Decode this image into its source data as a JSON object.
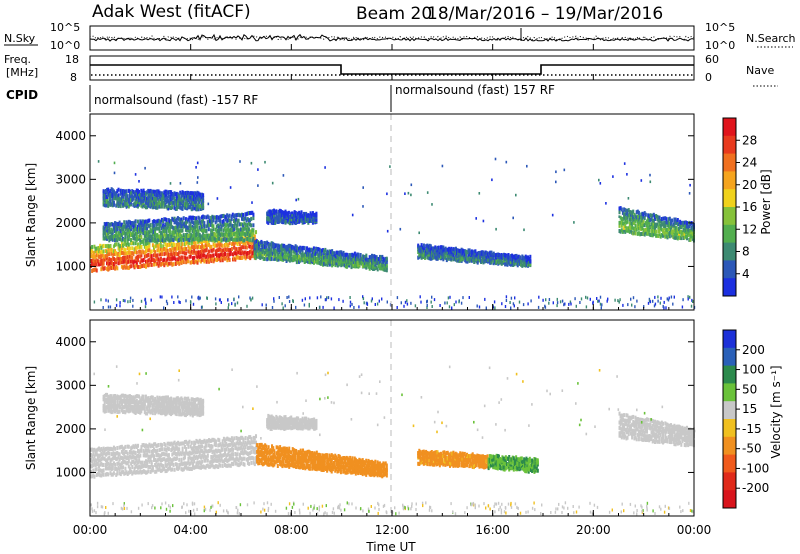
{
  "header": {
    "site": "Adak West (fitACF)",
    "beam": "Beam 20",
    "dates": "18/Mar/2016 – 19/Mar/2016"
  },
  "small_panels": {
    "nsky_label": "N.Sky",
    "nsky_ticks": [
      "10^5",
      "10^0"
    ],
    "nsearch_label": "N.Search",
    "nsearch_ticks": [
      "10^5",
      "10^0"
    ],
    "freq_label_line1": "Freq.",
    "freq_label_line2": "[MHz]",
    "freq_ticks": [
      "18",
      "8"
    ],
    "nave_label": "Nave",
    "nave_ticks": [
      "60",
      "0"
    ],
    "cpid_label": "CPID",
    "cpid_segments": [
      {
        "text": "normalsound (fast) -157 RF",
        "start_h": 0,
        "end_h": 12
      },
      {
        "text": "normalsound (fast) 157 RF",
        "start_h": 12,
        "end_h": 24
      }
    ]
  },
  "chart_data": [
    {
      "type": "heatmap",
      "parameter": "Power",
      "ylabel": "Slant Range [km]",
      "ylim": [
        0,
        4500
      ],
      "yticks": [
        "1000",
        "2000",
        "3000",
        "4000"
      ],
      "xlim_hours": [
        0,
        24
      ],
      "colorbar_label": "Power [dB]",
      "colorbar_ticks": [
        "4",
        "8",
        "12",
        "16",
        "20",
        "24",
        "28"
      ],
      "colorbar_colors": [
        "#1c30e0",
        "#2c58b8",
        "#3d8a72",
        "#52ae4e",
        "#86c23a",
        "#f0d21c",
        "#f5a41e",
        "#f07020",
        "#e83a1e",
        "#e0141c"
      ],
      "features": [
        {
          "t0": 0,
          "t1": 6.6,
          "r0": 900,
          "r1": 1200,
          "r2": 1500,
          "r3": 1900,
          "value": 24
        },
        {
          "t0": 0.5,
          "t1": 6.5,
          "r0": 1600,
          "r1": 1600,
          "r2": 2000,
          "r3": 2300,
          "value": 10
        },
        {
          "t0": 0.5,
          "t1": 4.5,
          "r0": 2400,
          "r1": 2300,
          "r2": 2800,
          "r3": 2700,
          "value": 8
        },
        {
          "t0": 6.5,
          "t1": 11.8,
          "r0": 1200,
          "r1": 900,
          "r2": 1600,
          "r3": 1200,
          "value": 10
        },
        {
          "t0": 7.0,
          "t1": 9.0,
          "r0": 2000,
          "r1": 2000,
          "r2": 2300,
          "r3": 2200,
          "value": 6
        },
        {
          "t0": 13.0,
          "t1": 17.5,
          "r0": 1200,
          "r1": 1000,
          "r2": 1500,
          "r3": 1200,
          "value": 8
        },
        {
          "t0": 21.0,
          "t1": 24.0,
          "r0": 1800,
          "r1": 1600,
          "r2": 2400,
          "r3": 2000,
          "value": 12
        }
      ]
    },
    {
      "type": "heatmap",
      "parameter": "Velocity",
      "ylabel": "Slant Range [km]",
      "ylim": [
        0,
        4500
      ],
      "yticks": [
        "1000",
        "2000",
        "3000",
        "4000"
      ],
      "xlim_hours": [
        0,
        24
      ],
      "xticks": [
        "00:00",
        "04:00",
        "08:00",
        "12:00",
        "16:00",
        "20:00",
        "00:00"
      ],
      "xlabel": "Time UT",
      "colorbar_label": "Velocity [m s⁻¹]",
      "colorbar_ticks": [
        "200",
        "100",
        "50",
        "15",
        "-15",
        "-50",
        "-100",
        "-200"
      ],
      "colorbar_colors": [
        "#1c30d8",
        "#2a60b8",
        "#2c8a4c",
        "#6ac23a",
        "#c8c8c8",
        "#f0c020",
        "#f09020",
        "#f05a1c",
        "#e02a1a",
        "#d8141c"
      ],
      "features": [
        {
          "t0": 0,
          "t1": 6.6,
          "r0": 900,
          "r1": 1200,
          "r2": 1600,
          "r3": 1900,
          "value": 0
        },
        {
          "t0": 0.5,
          "t1": 4.5,
          "r0": 2400,
          "r1": 2300,
          "r2": 2800,
          "r3": 2700,
          "value": 0
        },
        {
          "t0": 6.6,
          "t1": 11.8,
          "r0": 1200,
          "r1": 900,
          "r2": 1700,
          "r3": 1200,
          "value": -45
        },
        {
          "t0": 7.0,
          "t1": 9.0,
          "r0": 2000,
          "r1": 2000,
          "r2": 2300,
          "r3": 2200,
          "value": 0
        },
        {
          "t0": 13.0,
          "t1": 15.8,
          "r0": 1200,
          "r1": 1100,
          "r2": 1500,
          "r3": 1400,
          "value": -40
        },
        {
          "t0": 15.8,
          "t1": 17.8,
          "r0": 1100,
          "r1": 1000,
          "r2": 1400,
          "r3": 1300,
          "value": 30
        },
        {
          "t0": 21.0,
          "t1": 24.0,
          "r0": 1800,
          "r1": 1600,
          "r2": 2400,
          "r3": 2000,
          "value": 0
        }
      ]
    }
  ]
}
